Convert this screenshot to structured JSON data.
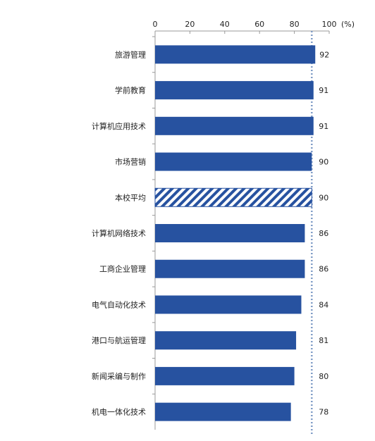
{
  "chart_data": {
    "type": "bar",
    "orientation": "horizontal",
    "title": "",
    "xlabel": "",
    "ylabel": "",
    "unit_label": "(%)",
    "xlim": [
      0,
      100
    ],
    "x_ticks": [
      0,
      20,
      40,
      60,
      80,
      100
    ],
    "categories": [
      "旅游管理",
      "学前教育",
      "计算机应用技术",
      "市场营销",
      "本校平均",
      "计算机网络技术",
      "工商企业管理",
      "电气自动化技术",
      "港口与航运管理",
      "新闻采编与制作",
      "机电一体化技术"
    ],
    "values": [
      92,
      91,
      91,
      90,
      90,
      86,
      86,
      84,
      81,
      80,
      78
    ],
    "highlight_category": "本校平均",
    "reference_line": 90,
    "grid": false,
    "legend": "none",
    "colors": {
      "bar": "#2752a0",
      "highlight_hatch": "#2752a0",
      "reference_line": "#7f9cc6",
      "axis": "#999999"
    }
  }
}
